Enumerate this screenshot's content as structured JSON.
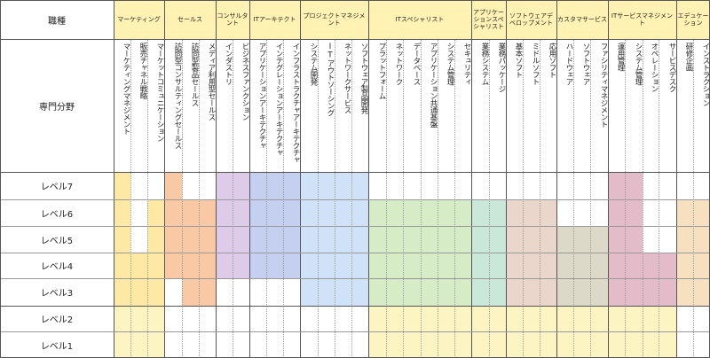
{
  "header": {
    "job_type_label": "職種",
    "field_label": "専門分野"
  },
  "categories": [
    {
      "label": "マーケティング",
      "specs": [
        "マーケティングマネジメント",
        "販売チャネル戦略",
        "マーケットコミュニケーション"
      ],
      "color": "#fde8a4",
      "coverage": [
        [
          1,
          7
        ],
        [
          1,
          4
        ],
        [
          1,
          6
        ]
      ]
    },
    {
      "label": "セールス",
      "specs": [
        "訪問型コンサルティングセールス",
        "訪問型製品セールス",
        "メディア利用型セールス"
      ],
      "color": "#f8c9a4",
      "coverage": [
        [
          4,
          7
        ],
        [
          3,
          6
        ],
        [
          3,
          6
        ]
      ]
    },
    {
      "label": "コンサルタント",
      "specs": [
        "インダストリ",
        "ビジネスファンクション"
      ],
      "color": "#ddcbe9",
      "coverage": [
        [
          4,
          7
        ],
        [
          4,
          7
        ]
      ]
    },
    {
      "label": "ITアーキテクト",
      "specs": [
        "アプリケーションアーキテクチャ",
        "インテグレーションアーキテクチャ",
        "インフラストラクチャアーキテクチャ"
      ],
      "color": "#c5d0f0",
      "coverage": [
        [
          4,
          7
        ],
        [
          4,
          7
        ],
        [
          4,
          7
        ]
      ]
    },
    {
      "label": "プロジェクトマネジメント",
      "specs": [
        "システム開発",
        "ITアウトソーシング",
        "ネットワークサービス",
        "ソフトウェア製品開発"
      ],
      "color": "#cfe2f7",
      "coverage": [
        [
          3,
          7
        ],
        [
          3,
          7
        ],
        [
          3,
          7
        ],
        [
          3,
          7
        ]
      ]
    },
    {
      "label": "ITスペシャリスト",
      "specs": [
        "プラットフォーム",
        "ネットワーク",
        "データベース",
        "アプリケーション共通基盤",
        "システム管理",
        "セキュリティ"
      ],
      "color": "#d6ecc6",
      "coverage": [
        [
          1,
          6
        ],
        [
          1,
          6
        ],
        [
          1,
          6
        ],
        [
          1,
          6
        ],
        [
          1,
          6
        ],
        [
          1,
          6
        ]
      ]
    },
    {
      "label": "アプリケーションスペシャリスト",
      "specs": [
        "業務システム",
        "業務パッケージ"
      ],
      "color": "#c9e8d9",
      "coverage": [
        [
          1,
          6
        ],
        [
          1,
          6
        ]
      ]
    },
    {
      "label": "ソフトウェアデベロップメント",
      "specs": [
        "基本ソフト",
        "ミドルソフト",
        "応用ソフト"
      ],
      "color": "#ead6cb",
      "coverage": [
        [
          1,
          6
        ],
        [
          1,
          6
        ],
        [
          1,
          6
        ]
      ]
    },
    {
      "label": "カスタマサービス",
      "specs": [
        "ハードウェア",
        "ソフトウェア",
        "ファシリティマネジメント"
      ],
      "color": "#dcd9c8",
      "coverage": [
        [
          1,
          5
        ],
        [
          1,
          5
        ],
        [
          1,
          5
        ]
      ]
    },
    {
      "label": "ITサービスマネジメント",
      "specs": [
        "運用管理",
        "システム管理",
        "オペレーション",
        "サービスデスク"
      ],
      "color": "#e4bcc9",
      "coverage": [
        [
          1,
          7
        ],
        [
          1,
          7
        ],
        [
          1,
          4
        ],
        [
          1,
          4
        ]
      ]
    },
    {
      "label": "エデュケーション",
      "specs": [
        "研修企画",
        "インストラクション"
      ],
      "color": "#f7e0bf",
      "coverage": [
        [
          3,
          6
        ],
        [
          3,
          6
        ]
      ]
    }
  ],
  "levels": [
    "レベル7",
    "レベル6",
    "レベル5",
    "レベル4",
    "レベル3",
    "レベル2",
    "レベル1"
  ],
  "colors": {
    "header_category": "#fff2b3",
    "lower_band": "#fdf4c3",
    "line": "#555555"
  }
}
